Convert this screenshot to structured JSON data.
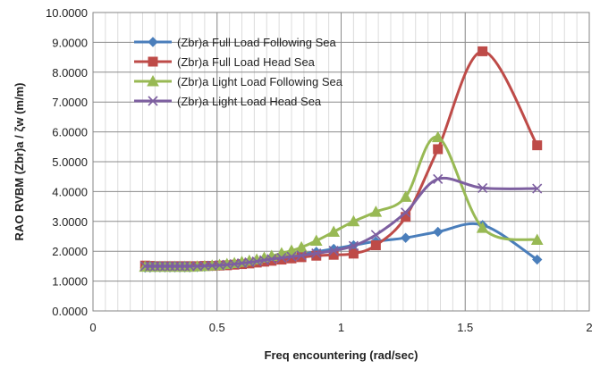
{
  "chart_data": {
    "type": "line",
    "title": "",
    "xlabel": "Freq encountering (rad/sec)",
    "ylabel": "RAO RVBM (Zbr)a / ζw (m/m)",
    "xlim": [
      0,
      2
    ],
    "ylim": [
      0,
      10
    ],
    "x_ticks": [
      "0",
      "0.5",
      "1",
      "1.5",
      "2"
    ],
    "y_ticks": [
      "0.0000",
      "1.0000",
      "2.0000",
      "3.0000",
      "4.0000",
      "5.0000",
      "6.0000",
      "7.0000",
      "8.0000",
      "9.0000",
      "10.0000"
    ],
    "grid": true,
    "legend_position": "top-left",
    "series": [
      {
        "name": "(Zbr)a Full Load Following Sea",
        "color": "#4a7ebb",
        "marker": "diamond",
        "x": [
          0.21,
          0.23,
          0.25,
          0.27,
          0.29,
          0.31,
          0.33,
          0.35,
          0.37,
          0.39,
          0.42,
          0.45,
          0.48,
          0.51,
          0.54,
          0.57,
          0.6,
          0.63,
          0.66,
          0.69,
          0.72,
          0.76,
          0.8,
          0.84,
          0.9,
          0.97,
          1.05,
          1.14,
          1.26,
          1.39,
          1.57,
          1.79
        ],
        "y": [
          1.45,
          1.45,
          1.46,
          1.46,
          1.46,
          1.46,
          1.46,
          1.46,
          1.46,
          1.46,
          1.47,
          1.48,
          1.5,
          1.52,
          1.54,
          1.56,
          1.59,
          1.62,
          1.66,
          1.7,
          1.75,
          1.8,
          1.85,
          1.9,
          1.98,
          2.08,
          2.2,
          2.33,
          2.45,
          2.65,
          2.88,
          1.72
        ]
      },
      {
        "name": "(Zbr)a Full Load Head Sea",
        "color": "#be4b48",
        "marker": "square",
        "x": [
          0.21,
          0.23,
          0.25,
          0.27,
          0.29,
          0.31,
          0.33,
          0.35,
          0.37,
          0.39,
          0.42,
          0.45,
          0.48,
          0.51,
          0.54,
          0.57,
          0.6,
          0.63,
          0.66,
          0.69,
          0.72,
          0.76,
          0.8,
          0.84,
          0.9,
          0.97,
          1.05,
          1.14,
          1.26,
          1.39,
          1.57,
          1.79
        ],
        "y": [
          1.52,
          1.51,
          1.5,
          1.5,
          1.5,
          1.5,
          1.5,
          1.5,
          1.5,
          1.5,
          1.5,
          1.51,
          1.51,
          1.52,
          1.53,
          1.55,
          1.57,
          1.59,
          1.62,
          1.65,
          1.68,
          1.72,
          1.76,
          1.8,
          1.85,
          1.88,
          1.92,
          2.2,
          3.15,
          5.42,
          8.7,
          5.55
        ]
      },
      {
        "name": "(Zbr)a Light Load Following Sea",
        "color": "#98b954",
        "marker": "triangle",
        "x": [
          0.21,
          0.23,
          0.25,
          0.27,
          0.29,
          0.31,
          0.33,
          0.35,
          0.37,
          0.39,
          0.42,
          0.45,
          0.48,
          0.51,
          0.54,
          0.57,
          0.6,
          0.63,
          0.66,
          0.69,
          0.72,
          0.76,
          0.8,
          0.84,
          0.9,
          0.97,
          1.05,
          1.14,
          1.26,
          1.39,
          1.57,
          1.79
        ],
        "y": [
          1.48,
          1.48,
          1.48,
          1.48,
          1.48,
          1.48,
          1.48,
          1.48,
          1.48,
          1.48,
          1.49,
          1.5,
          1.52,
          1.54,
          1.57,
          1.6,
          1.64,
          1.68,
          1.72,
          1.78,
          1.84,
          1.93,
          2.02,
          2.13,
          2.35,
          2.65,
          3.0,
          3.32,
          3.82,
          5.82,
          2.78,
          2.38
        ]
      },
      {
        "name": "(Zbr)a Light Load Head Sea",
        "color": "#7d5fa0",
        "marker": "x",
        "x": [
          0.21,
          0.23,
          0.25,
          0.27,
          0.29,
          0.31,
          0.33,
          0.35,
          0.37,
          0.39,
          0.42,
          0.45,
          0.48,
          0.51,
          0.54,
          0.57,
          0.6,
          0.63,
          0.66,
          0.69,
          0.72,
          0.76,
          0.8,
          0.84,
          0.9,
          0.97,
          1.05,
          1.14,
          1.26,
          1.39,
          1.57,
          1.79
        ],
        "y": [
          1.5,
          1.5,
          1.5,
          1.5,
          1.5,
          1.5,
          1.5,
          1.5,
          1.5,
          1.5,
          1.5,
          1.51,
          1.52,
          1.53,
          1.55,
          1.57,
          1.6,
          1.63,
          1.66,
          1.7,
          1.74,
          1.78,
          1.82,
          1.86,
          1.93,
          2.02,
          2.18,
          2.55,
          3.3,
          4.42,
          4.12,
          4.1
        ]
      }
    ]
  }
}
